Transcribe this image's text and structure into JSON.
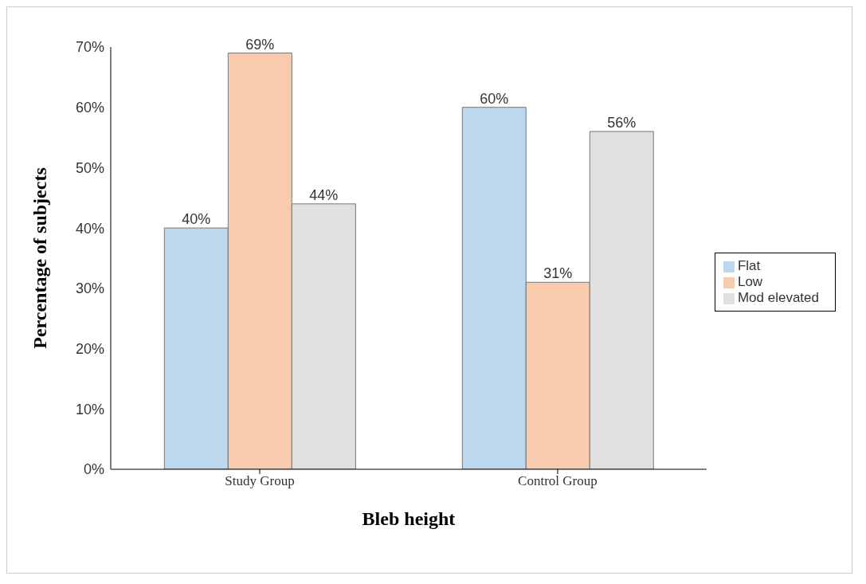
{
  "chart_data": {
    "type": "bar",
    "xlabel": "Bleb height",
    "ylabel": "Percentage of subjects",
    "categories": [
      "Study Group",
      "Control Group"
    ],
    "series": [
      {
        "name": "Flat",
        "color": "#bdd7ee",
        "values": [
          40,
          60
        ],
        "value_labels": [
          "40%",
          "60%"
        ]
      },
      {
        "name": "Low",
        "color": "#f8cbad",
        "values": [
          69,
          31
        ],
        "value_labels": [
          "69%",
          "31%"
        ]
      },
      {
        "name": "Mod elevated",
        "color": "#e0e0e0",
        "values": [
          44,
          56
        ],
        "value_labels": [
          "44%",
          "56%"
        ]
      }
    ],
    "ylim": [
      0,
      70
    ],
    "yticks": [
      {
        "value": 0,
        "label": "0%"
      },
      {
        "value": 10,
        "label": "10%"
      },
      {
        "value": 20,
        "label": "20%"
      },
      {
        "value": 30,
        "label": "30%"
      },
      {
        "value": 40,
        "label": "40%"
      },
      {
        "value": 50,
        "label": "50%"
      },
      {
        "value": 60,
        "label": "60%"
      },
      {
        "value": 70,
        "label": "70%"
      }
    ],
    "grid": false,
    "legend": "right"
  }
}
